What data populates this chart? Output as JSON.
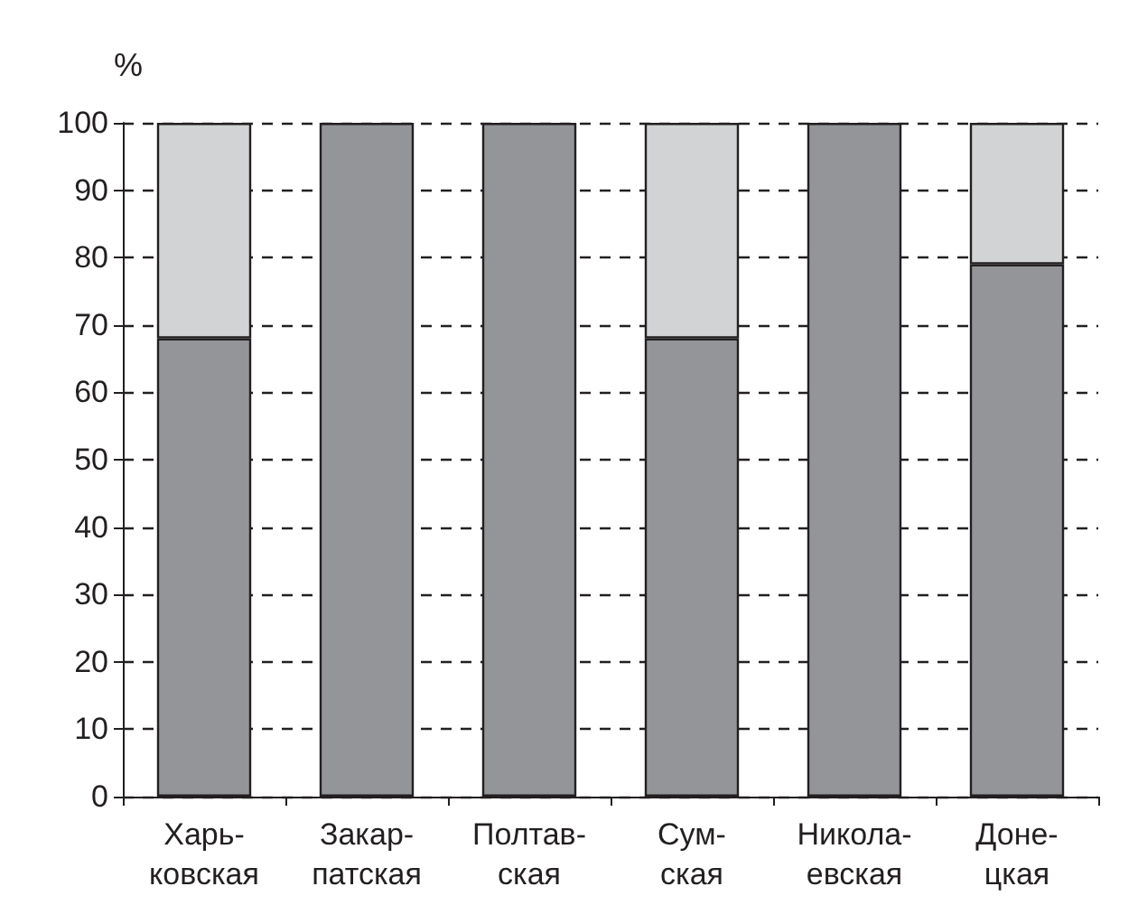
{
  "chart_data": {
    "type": "bar",
    "ylabel": "%",
    "stacked": true,
    "categories": [
      "Харь-\nковская",
      "Закар-\nпатская",
      "Полтав-\nская",
      "Сум-\nская",
      "Никола-\nевская",
      "Доне-\nцкая"
    ],
    "series": [
      {
        "color": "#939598",
        "values": [
          68,
          100,
          100,
          68,
          100,
          79
        ]
      },
      {
        "color": "#d1d3d4",
        "values": [
          32,
          null,
          null,
          32,
          null,
          21
        ]
      }
    ],
    "ylim": [
      0,
      100
    ],
    "yticks": [
      0,
      10,
      20,
      30,
      40,
      50,
      60,
      70,
      80,
      90,
      100
    ],
    "grid": "y"
  }
}
